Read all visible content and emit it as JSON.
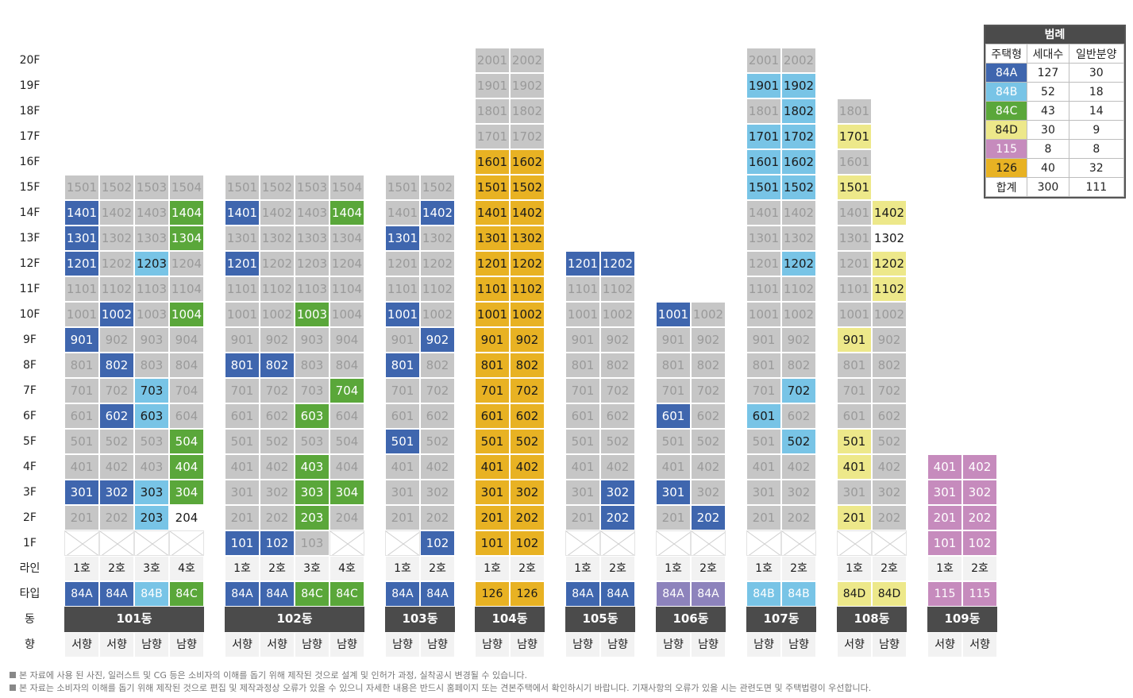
{
  "rows": {
    "floors": [
      "20F",
      "19F",
      "18F",
      "17F",
      "16F",
      "15F",
      "14F",
      "13F",
      "12F",
      "11F",
      "10F",
      "9F",
      "8F",
      "7F",
      "6F",
      "5F",
      "4F",
      "3F",
      "2F",
      "1F"
    ],
    "line_label": "라인",
    "type_label": "타입",
    "dong_label": "동",
    "dir_label": "향"
  },
  "colors": {
    "g": "#c6c6c6",
    "bl": "#3f66ae",
    "lb": "#78c4e6",
    "lg": "#5aa73a",
    "ly": "#ede88a",
    "pu": "#c68bbd",
    "or": "#e8b223",
    "vi": "#8d83bc"
  },
  "buildings": [
    {
      "name": "101동",
      "lines": [
        "1호",
        "2호",
        "3호",
        "4호"
      ],
      "types": [
        "84A",
        "84A",
        "84B",
        "84C"
      ],
      "dirs": [
        "서향",
        "서향",
        "남향",
        "남향"
      ],
      "top": 15,
      "empty1F": [
        0,
        1,
        2,
        3
      ],
      "hl": {
        "1401": "bl",
        "1404": "lg",
        "1301": "bl",
        "1304": "lg",
        "1201": "bl",
        "1203": "lb",
        "1002": "bl",
        "1004": "lg",
        "901": "bl",
        "802": "bl",
        "703": "lb",
        "602": "bl",
        "603": "lb",
        "504": "lg",
        "404": "lg",
        "301": "bl",
        "302": "bl",
        "303": "lb",
        "304": "lg",
        "203": "lb",
        "204": "w"
      }
    },
    {
      "name": "102동",
      "lines": [
        "1호",
        "2호",
        "3호",
        "4호"
      ],
      "types": [
        "84A",
        "84A",
        "84C",
        "84C"
      ],
      "dirs": [
        "서향",
        "서향",
        "남향",
        "남향"
      ],
      "top": 15,
      "empty1F": [
        3
      ],
      "hl": {
        "1401": "bl",
        "1404": "lg",
        "1201": "bl",
        "1003": "lg",
        "801": "bl",
        "802": "bl",
        "704": "lg",
        "603": "lg",
        "403": "lg",
        "303": "lg",
        "304": "lg",
        "203": "lg",
        "101": "bl",
        "102": "bl",
        "103": "g"
      }
    },
    {
      "name": "103동",
      "lines": [
        "1호",
        "2호"
      ],
      "types": [
        "84A",
        "84A"
      ],
      "dirs": [
        "남향",
        "남향"
      ],
      "top": 15,
      "empty1F": [
        0
      ],
      "hl": {
        "1402": "bl",
        "1301": "bl",
        "1001": "bl",
        "902": "bl",
        "801": "bl",
        "501": "bl",
        "102": "bl"
      }
    },
    {
      "name": "104동",
      "lines": [
        "1호",
        "2호"
      ],
      "types": [
        "126",
        "126"
      ],
      "dirs": [
        "남향",
        "남향"
      ],
      "top": 20,
      "empty1F": [],
      "grayAbove": 16,
      "base": "or",
      "hl": {}
    },
    {
      "name": "105동",
      "lines": [
        "1호",
        "2호"
      ],
      "types": [
        "84A",
        "84A"
      ],
      "dirs": [
        "남향",
        "남향"
      ],
      "top": 12,
      "empty1F": [
        0,
        1
      ],
      "hl": {
        "1201": "bl",
        "1202": "bl",
        "302": "bl",
        "202": "bl"
      }
    },
    {
      "name": "106동",
      "lines": [
        "1호",
        "2호"
      ],
      "types": [
        "84A",
        "84A"
      ],
      "dirs": [
        "남향",
        "남향"
      ],
      "top": 10,
      "empty1F": [
        0,
        1
      ],
      "typeColor": "vi",
      "hl": {
        "1001": "bl",
        "601": "bl",
        "301": "bl",
        "202": "bl"
      }
    },
    {
      "name": "107동",
      "lines": [
        "1호",
        "2호"
      ],
      "types": [
        "84B",
        "84B"
      ],
      "dirs": [
        "남향",
        "남향"
      ],
      "top": 20,
      "empty1F": [
        0,
        1
      ],
      "hl": {
        "1901": "lb",
        "1902": "lb",
        "1802": "lb",
        "1701": "lb",
        "1702": "lb",
        "1601": "lb",
        "1602": "lb",
        "1501": "lb",
        "1502": "lb",
        "1202": "lb",
        "702": "lb",
        "601": "lb",
        "502": "lb"
      }
    },
    {
      "name": "108동",
      "lines": [
        "1호",
        "2호"
      ],
      "types": [
        "84D",
        "84D"
      ],
      "dirs": [
        "서향",
        "남향"
      ],
      "top": 18,
      "empty1F": [
        0,
        1
      ],
      "col2Top": 14,
      "hl": {
        "1701": "ly",
        "1501": "ly",
        "1402": "ly",
        "1302": "w",
        "1202": "ly",
        "1102": "ly",
        "901": "ly",
        "501": "ly",
        "401": "ly",
        "201": "ly"
      }
    },
    {
      "name": "109동",
      "lines": [
        "1호",
        "2호"
      ],
      "types": [
        "115",
        "115"
      ],
      "dirs": [
        "서향",
        "서향"
      ],
      "top": 4,
      "empty1F": [],
      "base": "pu",
      "hl": {}
    }
  ],
  "legend": {
    "title": "범례",
    "headers": [
      "주택형",
      "세대수",
      "일반분양"
    ],
    "rows": [
      {
        "type": "84A",
        "count": "127",
        "general": "30",
        "color": "#3f66ae"
      },
      {
        "type": "84B",
        "count": "52",
        "general": "18",
        "color": "#78c4e6"
      },
      {
        "type": "84C",
        "count": "43",
        "general": "14",
        "color": "#5aa73a"
      },
      {
        "type": "84D",
        "count": "30",
        "general": "9",
        "color": "#ede88a"
      },
      {
        "type": "115",
        "count": "8",
        "general": "8",
        "color": "#c68bbd"
      },
      {
        "type": "126",
        "count": "40",
        "general": "32",
        "color": "#e8b223"
      }
    ],
    "total": {
      "label": "합계",
      "count": "300",
      "general": "111"
    }
  },
  "notes": [
    "본 자료에 사용 된 사진, 일러스트 및 CG 등은 소비자의 이해를 돕기 위해 제작된 것으로 설계 및 인허가 과정, 실착공시 변경될 수 있습니다.",
    "본 자료는 소비자의 이해를 돕기 위해 제작된 것으로 편집 및 제작과정상 오류가 있을 수 있으니 자세한 내용은 반드시 홈페이지 또는 견본주택에서 확인하시기 바랍니다. 기재사항의 오류가 있을 시는 관련도면 및 주택법령이 우선합니다."
  ]
}
